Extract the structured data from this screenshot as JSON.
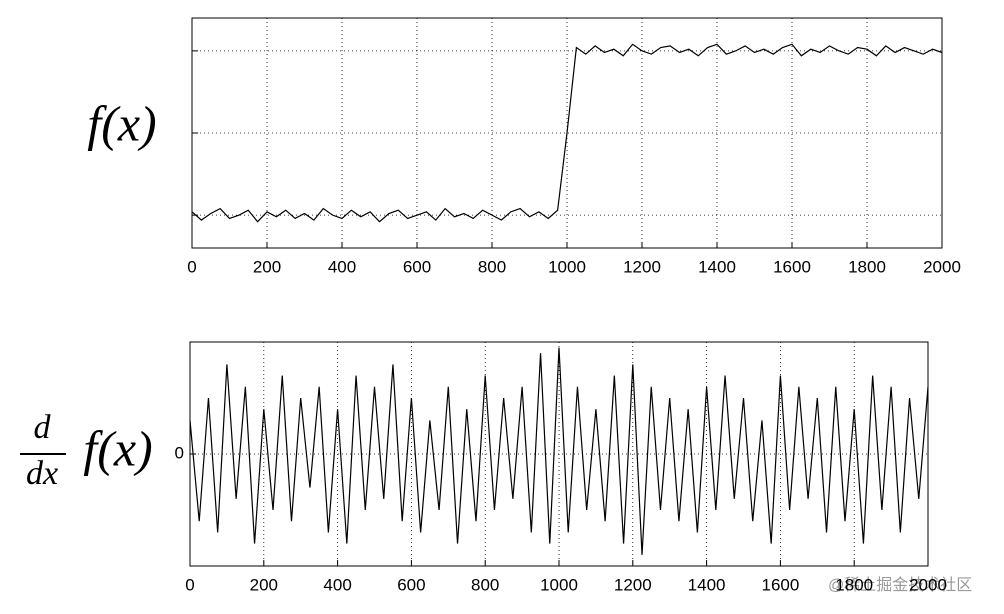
{
  "chart_data": [
    {
      "type": "line",
      "ylabel": "f(x)",
      "show_ytick_labels": false,
      "grid": true,
      "x": [
        0,
        25,
        50,
        75,
        100,
        125,
        150,
        175,
        200,
        225,
        250,
        275,
        300,
        325,
        350,
        375,
        400,
        425,
        450,
        475,
        500,
        525,
        550,
        575,
        600,
        625,
        650,
        675,
        700,
        725,
        750,
        775,
        800,
        825,
        850,
        875,
        900,
        925,
        950,
        975,
        1000,
        1025,
        1050,
        1075,
        1100,
        1125,
        1150,
        1175,
        1200,
        1225,
        1250,
        1275,
        1300,
        1325,
        1350,
        1375,
        1400,
        1425,
        1450,
        1475,
        1500,
        1525,
        1550,
        1575,
        1600,
        1625,
        1650,
        1675,
        1700,
        1725,
        1750,
        1775,
        1800,
        1825,
        1850,
        1875,
        1900,
        1925,
        1950,
        1975,
        2000
      ],
      "series": [
        {
          "color": "#000000",
          "values": [
            0.02,
            -0.03,
            0.01,
            0.04,
            -0.02,
            0.0,
            0.03,
            -0.04,
            0.02,
            -0.01,
            0.03,
            -0.02,
            0.01,
            -0.03,
            0.04,
            0.0,
            -0.02,
            0.03,
            -0.01,
            0.02,
            -0.04,
            0.01,
            0.03,
            -0.02,
            0.0,
            0.02,
            -0.03,
            0.04,
            -0.01,
            0.01,
            -0.02,
            0.03,
            0.0,
            -0.03,
            0.02,
            0.04,
            -0.01,
            0.02,
            -0.02,
            0.03,
            0.5,
            1.02,
            0.98,
            1.03,
            0.99,
            1.01,
            0.97,
            1.04,
            1.0,
            0.98,
            1.02,
            1.03,
            0.99,
            1.01,
            0.97,
            1.02,
            1.04,
            0.98,
            1.0,
            1.03,
            0.99,
            1.01,
            0.98,
            1.02,
            1.04,
            0.97,
            1.01,
            0.99,
            1.03,
            1.0,
            0.98,
            1.02,
            1.01,
            0.97,
            1.03,
            0.99,
            1.02,
            1.0,
            0.98,
            1.01,
            0.99
          ]
        }
      ],
      "xlim": [
        0,
        2000
      ],
      "xticks": [
        0,
        200,
        400,
        600,
        800,
        1000,
        1200,
        1400,
        1600,
        1800,
        2000
      ],
      "ylim": [
        -0.2,
        1.2
      ],
      "yticks": [
        0,
        0.5,
        1
      ]
    },
    {
      "type": "line",
      "ylabel": {
        "numerator": "d",
        "denominator": "dx",
        "text": "f(x)"
      },
      "show_ytick_labels": true,
      "grid": true,
      "x": [
        0,
        25,
        50,
        75,
        100,
        125,
        150,
        175,
        200,
        225,
        250,
        275,
        300,
        325,
        350,
        375,
        400,
        425,
        450,
        475,
        500,
        525,
        550,
        575,
        600,
        625,
        650,
        675,
        700,
        725,
        750,
        775,
        800,
        825,
        850,
        875,
        900,
        925,
        950,
        975,
        1000,
        1025,
        1050,
        1075,
        1100,
        1125,
        1150,
        1175,
        1200,
        1225,
        1250,
        1275,
        1300,
        1325,
        1350,
        1375,
        1400,
        1425,
        1450,
        1475,
        1500,
        1525,
        1550,
        1575,
        1600,
        1625,
        1650,
        1675,
        1700,
        1725,
        1750,
        1775,
        1800,
        1825,
        1850,
        1875,
        1900,
        1925,
        1950,
        1975,
        2000
      ],
      "series": [
        {
          "color": "#000000",
          "values": [
            0.3,
            -0.6,
            0.5,
            -0.7,
            0.8,
            -0.4,
            0.6,
            -0.8,
            0.4,
            -0.5,
            0.7,
            -0.6,
            0.5,
            -0.3,
            0.6,
            -0.7,
            0.4,
            -0.8,
            0.7,
            -0.5,
            0.6,
            -0.4,
            0.8,
            -0.6,
            0.5,
            -0.7,
            0.3,
            -0.5,
            0.6,
            -0.8,
            0.4,
            -0.6,
            0.7,
            -0.5,
            0.5,
            -0.4,
            0.6,
            -0.7,
            0.9,
            -0.8,
            0.95,
            -0.7,
            0.6,
            -0.5,
            0.4,
            -0.6,
            0.7,
            -0.8,
            0.8,
            -0.9,
            0.6,
            -0.5,
            0.5,
            -0.6,
            0.4,
            -0.7,
            0.6,
            -0.5,
            0.7,
            -0.4,
            0.5,
            -0.6,
            0.3,
            -0.8,
            0.7,
            -0.5,
            0.6,
            -0.4,
            0.5,
            -0.7,
            0.6,
            -0.6,
            0.4,
            -0.8,
            0.7,
            -0.5,
            0.6,
            -0.7,
            0.5,
            -0.4,
            0.6
          ]
        }
      ],
      "xlim": [
        0,
        2000
      ],
      "xticks": [
        0,
        200,
        400,
        600,
        800,
        1000,
        1200,
        1400,
        1600,
        1800,
        2000
      ],
      "ylim": [
        -1,
        1
      ],
      "yticks": [
        0
      ]
    }
  ],
  "watermark": "@稀土掘金技术社区"
}
